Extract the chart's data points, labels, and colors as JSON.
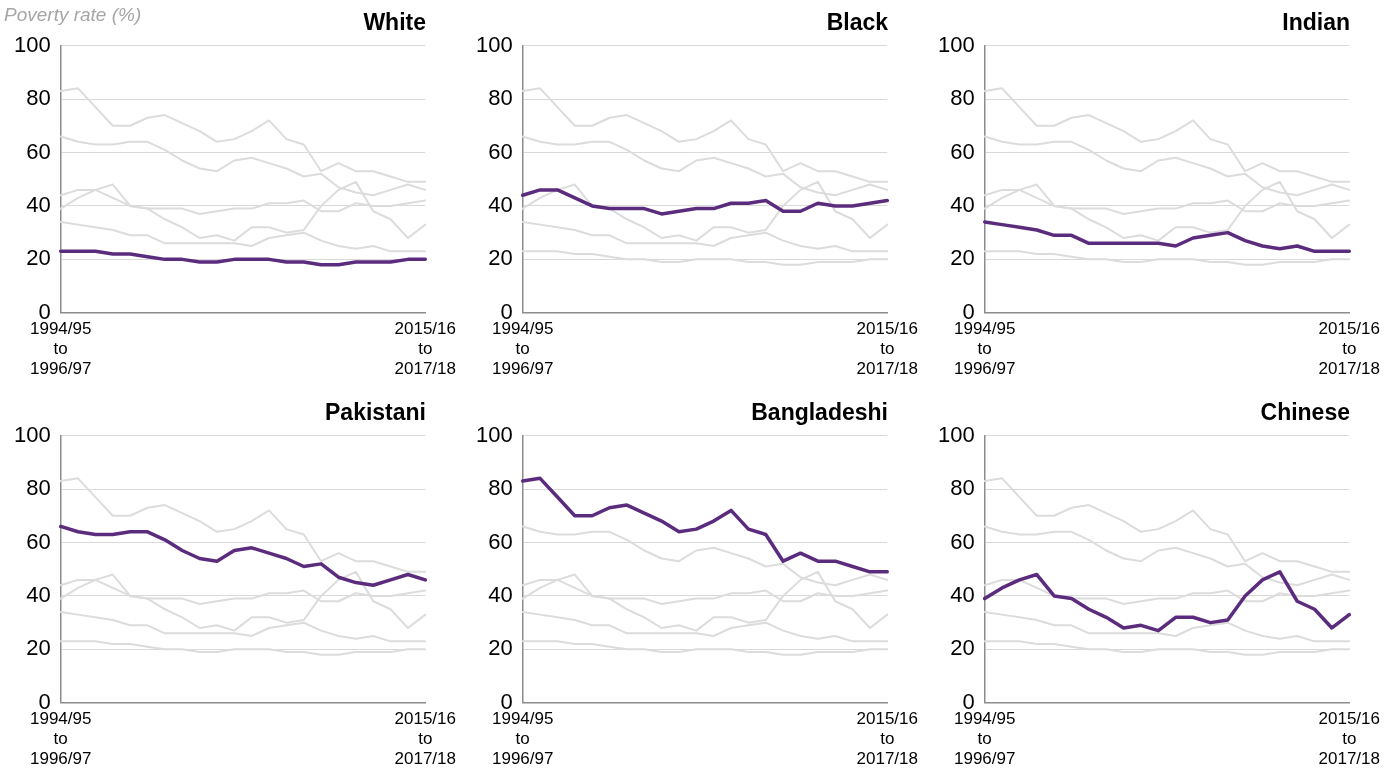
{
  "chart_data": [
    {
      "type": "line",
      "title": "White",
      "ylabel": "Poverty rate (%)",
      "categories": [
        "1994/95\nto\n1996/97",
        null,
        null,
        null,
        null,
        null,
        null,
        null,
        null,
        null,
        null,
        null,
        null,
        null,
        null,
        null,
        null,
        null,
        null,
        null,
        null,
        "2015/16\nto\n2017/18"
      ],
      "ylim": [
        0,
        100
      ],
      "yticks": [
        0,
        20,
        40,
        60,
        80,
        100
      ],
      "grid": "y",
      "marker": "none",
      "line_style": "solid",
      "series": [
        {
          "color": "#dcdcdc",
          "values": [
            44,
            46,
            46,
            43,
            40,
            39,
            39,
            39,
            37,
            38,
            39,
            39,
            41,
            41,
            42,
            38,
            38,
            41,
            40,
            40,
            41,
            42
          ]
        },
        {
          "color": "#dcdcdc",
          "values": [
            34,
            33,
            32,
            31,
            29,
            29,
            26,
            26,
            26,
            26,
            26,
            25,
            28,
            29,
            30,
            27,
            25,
            24,
            25,
            23,
            23,
            23
          ]
        },
        {
          "color": "#dcdcdc",
          "values": [
            66,
            64,
            63,
            63,
            64,
            64,
            61,
            57,
            54,
            53,
            57,
            58,
            56,
            54,
            51,
            52,
            47,
            45,
            44,
            46,
            48,
            46
          ]
        },
        {
          "color": "#dcdcdc",
          "values": [
            83,
            84,
            77,
            70,
            70,
            73,
            74,
            71,
            68,
            64,
            65,
            68,
            72,
            65,
            63,
            53,
            56,
            53,
            53,
            51,
            49,
            49
          ]
        },
        {
          "color": "#dcdcdc",
          "values": [
            39,
            43,
            46,
            48,
            40,
            39,
            35,
            32,
            28,
            29,
            27,
            32,
            32,
            30,
            31,
            40,
            46,
            49,
            38,
            35,
            28,
            33
          ]
        },
        {
          "color": "#5b2c7d",
          "values": [
            23,
            23,
            23,
            22,
            22,
            21,
            20,
            20,
            19,
            19,
            20,
            20,
            20,
            19,
            19,
            18,
            18,
            19,
            19,
            19,
            20,
            20
          ]
        }
      ]
    },
    {
      "type": "line",
      "title": "Black",
      "categories": [
        "1994/95\nto\n1996/97",
        null,
        null,
        null,
        null,
        null,
        null,
        null,
        null,
        null,
        null,
        null,
        null,
        null,
        null,
        null,
        null,
        null,
        null,
        null,
        null,
        "2015/16\nto\n2017/18"
      ],
      "ylim": [
        0,
        100
      ],
      "yticks": [
        0,
        20,
        40,
        60,
        80,
        100
      ],
      "grid": "y",
      "marker": "none",
      "line_style": "solid",
      "series": [
        {
          "color": "#dcdcdc",
          "values": [
            23,
            23,
            23,
            22,
            22,
            21,
            20,
            20,
            19,
            19,
            20,
            20,
            20,
            19,
            19,
            18,
            18,
            19,
            19,
            19,
            20,
            20
          ]
        },
        {
          "color": "#dcdcdc",
          "values": [
            34,
            33,
            32,
            31,
            29,
            29,
            26,
            26,
            26,
            26,
            26,
            25,
            28,
            29,
            30,
            27,
            25,
            24,
            25,
            23,
            23,
            23
          ]
        },
        {
          "color": "#dcdcdc",
          "values": [
            66,
            64,
            63,
            63,
            64,
            64,
            61,
            57,
            54,
            53,
            57,
            58,
            56,
            54,
            51,
            52,
            47,
            45,
            44,
            46,
            48,
            46
          ]
        },
        {
          "color": "#dcdcdc",
          "values": [
            83,
            84,
            77,
            70,
            70,
            73,
            74,
            71,
            68,
            64,
            65,
            68,
            72,
            65,
            63,
            53,
            56,
            53,
            53,
            51,
            49,
            49
          ]
        },
        {
          "color": "#dcdcdc",
          "values": [
            39,
            43,
            46,
            48,
            40,
            39,
            35,
            32,
            28,
            29,
            27,
            32,
            32,
            30,
            31,
            40,
            46,
            49,
            38,
            35,
            28,
            33
          ]
        },
        {
          "color": "#5b2c7d",
          "values": [
            44,
            46,
            46,
            43,
            40,
            39,
            39,
            39,
            37,
            38,
            39,
            39,
            41,
            41,
            42,
            38,
            38,
            41,
            40,
            40,
            41,
            42
          ]
        }
      ]
    },
    {
      "type": "line",
      "title": "Indian",
      "categories": [
        "1994/95\nto\n1996/97",
        null,
        null,
        null,
        null,
        null,
        null,
        null,
        null,
        null,
        null,
        null,
        null,
        null,
        null,
        null,
        null,
        null,
        null,
        null,
        null,
        "2015/16\nto\n2017/18"
      ],
      "ylim": [
        0,
        100
      ],
      "yticks": [
        0,
        20,
        40,
        60,
        80,
        100
      ],
      "grid": "y",
      "marker": "none",
      "line_style": "solid",
      "series": [
        {
          "color": "#dcdcdc",
          "values": [
            23,
            23,
            23,
            22,
            22,
            21,
            20,
            20,
            19,
            19,
            20,
            20,
            20,
            19,
            19,
            18,
            18,
            19,
            19,
            19,
            20,
            20
          ]
        },
        {
          "color": "#dcdcdc",
          "values": [
            44,
            46,
            46,
            43,
            40,
            39,
            39,
            39,
            37,
            38,
            39,
            39,
            41,
            41,
            42,
            38,
            38,
            41,
            40,
            40,
            41,
            42
          ]
        },
        {
          "color": "#dcdcdc",
          "values": [
            66,
            64,
            63,
            63,
            64,
            64,
            61,
            57,
            54,
            53,
            57,
            58,
            56,
            54,
            51,
            52,
            47,
            45,
            44,
            46,
            48,
            46
          ]
        },
        {
          "color": "#dcdcdc",
          "values": [
            83,
            84,
            77,
            70,
            70,
            73,
            74,
            71,
            68,
            64,
            65,
            68,
            72,
            65,
            63,
            53,
            56,
            53,
            53,
            51,
            49,
            49
          ]
        },
        {
          "color": "#dcdcdc",
          "values": [
            39,
            43,
            46,
            48,
            40,
            39,
            35,
            32,
            28,
            29,
            27,
            32,
            32,
            30,
            31,
            40,
            46,
            49,
            38,
            35,
            28,
            33
          ]
        },
        {
          "color": "#5b2c7d",
          "values": [
            34,
            33,
            32,
            31,
            29,
            29,
            26,
            26,
            26,
            26,
            26,
            25,
            28,
            29,
            30,
            27,
            25,
            24,
            25,
            23,
            23,
            23
          ]
        }
      ]
    },
    {
      "type": "line",
      "title": "Pakistani",
      "categories": [
        "1994/95\nto\n1996/97",
        null,
        null,
        null,
        null,
        null,
        null,
        null,
        null,
        null,
        null,
        null,
        null,
        null,
        null,
        null,
        null,
        null,
        null,
        null,
        null,
        "2015/16\nto\n2017/18"
      ],
      "ylim": [
        0,
        100
      ],
      "yticks": [
        0,
        20,
        40,
        60,
        80,
        100
      ],
      "grid": "y",
      "marker": "none",
      "line_style": "solid",
      "series": [
        {
          "color": "#dcdcdc",
          "values": [
            23,
            23,
            23,
            22,
            22,
            21,
            20,
            20,
            19,
            19,
            20,
            20,
            20,
            19,
            19,
            18,
            18,
            19,
            19,
            19,
            20,
            20
          ]
        },
        {
          "color": "#dcdcdc",
          "values": [
            44,
            46,
            46,
            43,
            40,
            39,
            39,
            39,
            37,
            38,
            39,
            39,
            41,
            41,
            42,
            38,
            38,
            41,
            40,
            40,
            41,
            42
          ]
        },
        {
          "color": "#dcdcdc",
          "values": [
            34,
            33,
            32,
            31,
            29,
            29,
            26,
            26,
            26,
            26,
            26,
            25,
            28,
            29,
            30,
            27,
            25,
            24,
            25,
            23,
            23,
            23
          ]
        },
        {
          "color": "#dcdcdc",
          "values": [
            83,
            84,
            77,
            70,
            70,
            73,
            74,
            71,
            68,
            64,
            65,
            68,
            72,
            65,
            63,
            53,
            56,
            53,
            53,
            51,
            49,
            49
          ]
        },
        {
          "color": "#dcdcdc",
          "values": [
            39,
            43,
            46,
            48,
            40,
            39,
            35,
            32,
            28,
            29,
            27,
            32,
            32,
            30,
            31,
            40,
            46,
            49,
            38,
            35,
            28,
            33
          ]
        },
        {
          "color": "#5b2c7d",
          "values": [
            66,
            64,
            63,
            63,
            64,
            64,
            61,
            57,
            54,
            53,
            57,
            58,
            56,
            54,
            51,
            52,
            47,
            45,
            44,
            46,
            48,
            46
          ]
        }
      ]
    },
    {
      "type": "line",
      "title": "Bangladeshi",
      "categories": [
        "1994/95\nto\n1996/97",
        null,
        null,
        null,
        null,
        null,
        null,
        null,
        null,
        null,
        null,
        null,
        null,
        null,
        null,
        null,
        null,
        null,
        null,
        null,
        null,
        "2015/16\nto\n2017/18"
      ],
      "ylim": [
        0,
        100
      ],
      "yticks": [
        0,
        20,
        40,
        60,
        80,
        100
      ],
      "grid": "y",
      "marker": "none",
      "line_style": "solid",
      "series": [
        {
          "color": "#dcdcdc",
          "values": [
            23,
            23,
            23,
            22,
            22,
            21,
            20,
            20,
            19,
            19,
            20,
            20,
            20,
            19,
            19,
            18,
            18,
            19,
            19,
            19,
            20,
            20
          ]
        },
        {
          "color": "#dcdcdc",
          "values": [
            44,
            46,
            46,
            43,
            40,
            39,
            39,
            39,
            37,
            38,
            39,
            39,
            41,
            41,
            42,
            38,
            38,
            41,
            40,
            40,
            41,
            42
          ]
        },
        {
          "color": "#dcdcdc",
          "values": [
            34,
            33,
            32,
            31,
            29,
            29,
            26,
            26,
            26,
            26,
            26,
            25,
            28,
            29,
            30,
            27,
            25,
            24,
            25,
            23,
            23,
            23
          ]
        },
        {
          "color": "#dcdcdc",
          "values": [
            66,
            64,
            63,
            63,
            64,
            64,
            61,
            57,
            54,
            53,
            57,
            58,
            56,
            54,
            51,
            52,
            47,
            45,
            44,
            46,
            48,
            46
          ]
        },
        {
          "color": "#dcdcdc",
          "values": [
            39,
            43,
            46,
            48,
            40,
            39,
            35,
            32,
            28,
            29,
            27,
            32,
            32,
            30,
            31,
            40,
            46,
            49,
            38,
            35,
            28,
            33
          ]
        },
        {
          "color": "#5b2c7d",
          "values": [
            83,
            84,
            77,
            70,
            70,
            73,
            74,
            71,
            68,
            64,
            65,
            68,
            72,
            65,
            63,
            53,
            56,
            53,
            53,
            51,
            49,
            49
          ]
        }
      ]
    },
    {
      "type": "line",
      "title": "Chinese",
      "categories": [
        "1994/95\nto\n1996/97",
        null,
        null,
        null,
        null,
        null,
        null,
        null,
        null,
        null,
        null,
        null,
        null,
        null,
        null,
        null,
        null,
        null,
        null,
        null,
        null,
        "2015/16\nto\n2017/18"
      ],
      "ylim": [
        0,
        100
      ],
      "yticks": [
        0,
        20,
        40,
        60,
        80,
        100
      ],
      "grid": "y",
      "marker": "none",
      "line_style": "solid",
      "series": [
        {
          "color": "#dcdcdc",
          "values": [
            23,
            23,
            23,
            22,
            22,
            21,
            20,
            20,
            19,
            19,
            20,
            20,
            20,
            19,
            19,
            18,
            18,
            19,
            19,
            19,
            20,
            20
          ]
        },
        {
          "color": "#dcdcdc",
          "values": [
            44,
            46,
            46,
            43,
            40,
            39,
            39,
            39,
            37,
            38,
            39,
            39,
            41,
            41,
            42,
            38,
            38,
            41,
            40,
            40,
            41,
            42
          ]
        },
        {
          "color": "#dcdcdc",
          "values": [
            34,
            33,
            32,
            31,
            29,
            29,
            26,
            26,
            26,
            26,
            26,
            25,
            28,
            29,
            30,
            27,
            25,
            24,
            25,
            23,
            23,
            23
          ]
        },
        {
          "color": "#dcdcdc",
          "values": [
            66,
            64,
            63,
            63,
            64,
            64,
            61,
            57,
            54,
            53,
            57,
            58,
            56,
            54,
            51,
            52,
            47,
            45,
            44,
            46,
            48,
            46
          ]
        },
        {
          "color": "#dcdcdc",
          "values": [
            83,
            84,
            77,
            70,
            70,
            73,
            74,
            71,
            68,
            64,
            65,
            68,
            72,
            65,
            63,
            53,
            56,
            53,
            53,
            51,
            49,
            49
          ]
        },
        {
          "color": "#5b2c7d",
          "values": [
            39,
            43,
            46,
            48,
            40,
            39,
            35,
            32,
            28,
            29,
            27,
            32,
            32,
            30,
            31,
            40,
            46,
            49,
            38,
            35,
            28,
            33
          ]
        }
      ]
    }
  ]
}
